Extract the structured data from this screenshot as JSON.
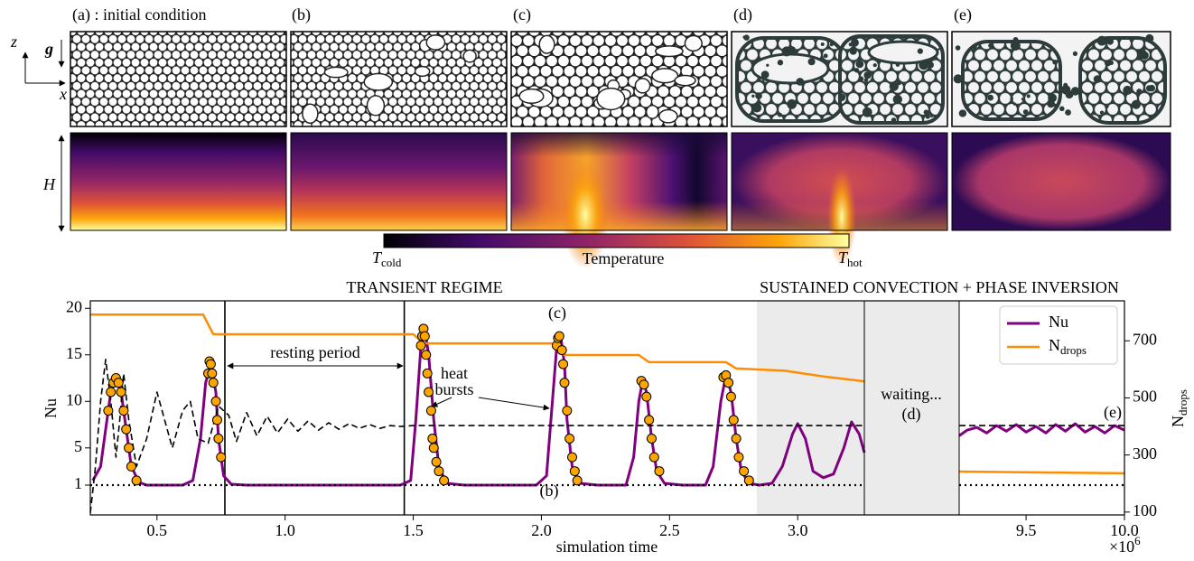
{
  "panels": {
    "labels": [
      "(a) : initial condition",
      "(b)",
      "(c)",
      "(d)",
      "(e)"
    ],
    "axis_z": "z",
    "axis_x": "x",
    "gravity": "g",
    "height": "H"
  },
  "colorbar": {
    "left": {
      "symbol": "T",
      "subscript": "cold"
    },
    "label": "Temperature",
    "right": {
      "symbol": "T",
      "subscript": "hot"
    }
  },
  "chart_data": {
    "type": "line",
    "regions": [
      "TRANSIENT REGIME",
      "SUSTAINED CONVECTION + PHASE INVERSION"
    ],
    "xlabel": "simulation time",
    "x_multiplier": {
      "base": "×10",
      "exponent": "6"
    },
    "ylabel": "Nu",
    "y2label": {
      "symbol": "N",
      "subscript": "drops"
    },
    "xlim": [
      [
        0.24,
        3.26
      ],
      [
        9.16,
        10.0
      ]
    ],
    "xticks": [
      0.5,
      {
        "value": 1,
        "label": "1.0"
      },
      1.5,
      {
        "value": 2,
        "label": "2.0"
      },
      2.5,
      {
        "value": 3,
        "label": "3.0"
      },
      9.5,
      {
        "value": 10,
        "label": "10.0"
      }
    ],
    "ylim": [
      -2.2,
      20.8
    ],
    "yticks": [
      1,
      5,
      10,
      15,
      20
    ],
    "y2lim": [
      90,
      840
    ],
    "y2ticks": [
      100,
      300,
      500,
      700
    ],
    "vlines": [
      0.765,
      1.465
    ],
    "shade_from": 2.84,
    "legend": "upper right",
    "annotations": {
      "resting": "resting period",
      "bursts": "heat bursts",
      "b": "(b)",
      "c": "(c)",
      "waiting": "waiting...",
      "d": "(d)",
      "e": "(e)"
    },
    "series": [
      {
        "name": "Nu",
        "color": "#800080",
        "width": 3,
        "x": [
          0.25,
          0.28,
          0.3,
          0.32,
          0.34,
          0.36,
          0.38,
          0.4,
          0.43,
          0.46,
          0.6,
          0.64,
          0.67,
          0.69,
          0.71,
          0.73,
          0.74,
          0.76,
          0.79,
          0.85,
          1.45,
          1.49,
          1.51,
          1.53,
          1.545,
          1.56,
          1.58,
          1.6,
          1.63,
          1.7,
          1.98,
          2.02,
          2.04,
          2.06,
          2.075,
          2.09,
          2.1,
          2.12,
          2.15,
          2.22,
          2.33,
          2.36,
          2.38,
          2.395,
          2.41,
          2.43,
          2.45,
          2.48,
          2.55,
          2.64,
          2.67,
          2.7,
          2.72,
          2.74,
          2.76,
          2.78,
          2.81,
          2.85,
          2.9,
          2.94,
          2.98,
          3.0,
          3.03,
          3.06,
          3.1,
          3.14,
          3.18,
          3.21,
          3.24,
          3.26,
          null,
          9.16,
          9.2,
          9.25,
          9.3,
          9.35,
          9.4,
          9.45,
          9.5,
          9.55,
          9.6,
          9.65,
          9.7,
          9.75,
          9.8,
          9.85,
          9.9,
          9.95,
          10.0
        ],
        "values": [
          1.5,
          3,
          7,
          11,
          12.5,
          11,
          7,
          3,
          1.3,
          1.0,
          1.0,
          1.5,
          6,
          12,
          14,
          11,
          6,
          2,
          1.1,
          1.0,
          1.0,
          1.5,
          8,
          16,
          17.8,
          15,
          8,
          3,
          1.2,
          1.0,
          1.0,
          2,
          9,
          16,
          17,
          14,
          8,
          3,
          1.2,
          1.0,
          1.0,
          4,
          10,
          12.2,
          11,
          6,
          2.5,
          1.2,
          1.0,
          1.0,
          3,
          10,
          12.8,
          11,
          6,
          2.5,
          1.2,
          1.0,
          1.2,
          3,
          6.5,
          7.6,
          6,
          2.5,
          1.8,
          2.2,
          5,
          7.8,
          6.5,
          4.5,
          null,
          6.3,
          6.9,
          7.2,
          6.6,
          7.4,
          6.8,
          7.5,
          6.7,
          7.3,
          6.6,
          7.5,
          6.8,
          7.6,
          6.7,
          7.3,
          6.6,
          7.4,
          6.9
        ]
      },
      {
        "name": {
          "symbol": "N",
          "subscript": "drops"
        },
        "color": "#ff8c00",
        "width": 2.5,
        "axis": "y2",
        "x": [
          0.24,
          0.68,
          0.72,
          1.5,
          1.54,
          2.05,
          2.09,
          2.38,
          2.42,
          2.72,
          2.76,
          2.95,
          3.1,
          3.26,
          null,
          9.16,
          10.0
        ],
        "values": [
          792,
          792,
          723,
          723,
          691,
          691,
          650,
          650,
          625,
          625,
          603,
          595,
          575,
          558,
          null,
          242,
          236
        ]
      },
      {
        "color": "#000000",
        "width": 1.6,
        "dash": "dashed",
        "x": [
          0.24,
          0.26,
          0.28,
          0.3,
          0.32,
          0.34,
          0.355,
          0.37,
          0.39,
          0.42,
          0.46,
          0.5,
          0.53,
          0.56,
          0.6,
          0.63,
          0.66,
          0.7,
          0.74,
          0.78,
          0.81,
          0.85,
          0.89,
          0.93,
          0.97,
          1.01,
          1.05,
          1.09,
          1.13,
          1.17,
          1.21,
          1.25,
          1.29,
          1.33,
          1.37,
          1.41,
          1.45,
          1.5,
          3.26,
          null,
          9.16,
          10.0
        ],
        "values": [
          -2,
          3,
          10,
          14.5,
          10,
          4,
          8,
          13,
          8,
          3,
          6,
          11,
          8,
          5,
          9,
          10,
          6,
          5.5,
          9.5,
          8.5,
          5.7,
          8.8,
          6.3,
          8.4,
          6.6,
          8.1,
          6.8,
          7.9,
          6.9,
          7.7,
          7.0,
          7.6,
          7.1,
          7.5,
          7.1,
          7.4,
          7.3,
          7.4,
          7.4,
          null,
          7.4,
          7.4
        ]
      },
      {
        "color": "#000000",
        "width": 2.2,
        "dash": "dotted",
        "x": [
          0.24,
          3.26,
          null,
          9.16,
          10.0
        ],
        "values": [
          1,
          1,
          null,
          1,
          1
        ]
      },
      {
        "type": "scatter",
        "color": "#ffa500",
        "edge": "#000000",
        "x": [
          0.31,
          0.32,
          0.33,
          0.34,
          0.35,
          0.36,
          0.37,
          0.38,
          0.39,
          0.4,
          0.42,
          0.7,
          0.705,
          0.71,
          0.715,
          0.72,
          0.73,
          0.735,
          0.74,
          0.75,
          1.53,
          1.535,
          1.54,
          1.545,
          1.55,
          1.555,
          1.56,
          1.57,
          1.575,
          1.58,
          1.59,
          1.6,
          1.62,
          2.06,
          2.065,
          2.07,
          2.08,
          2.085,
          2.09,
          2.1,
          2.11,
          2.12,
          2.13,
          2.14,
          2.39,
          2.4,
          2.41,
          2.42,
          2.43,
          2.44,
          2.46,
          2.71,
          2.72,
          2.73,
          2.74,
          2.75,
          2.76,
          2.77,
          2.79,
          2.81
        ],
        "values": [
          9,
          11,
          12,
          12.5,
          12,
          11,
          9,
          7,
          5,
          3,
          1.5,
          13,
          14.3,
          14,
          13,
          12,
          10,
          8,
          6,
          4,
          16,
          17,
          17.8,
          17,
          15,
          13,
          11,
          9,
          6,
          5,
          3.5,
          2.5,
          1.5,
          16,
          16.8,
          17,
          15.5,
          14,
          12,
          9,
          6,
          4,
          2.5,
          1.5,
          12.2,
          11.8,
          10.5,
          8,
          6,
          4,
          2.5,
          12.6,
          12.8,
          12,
          10.5,
          8,
          6,
          4,
          2.5,
          1.5
        ]
      }
    ]
  }
}
